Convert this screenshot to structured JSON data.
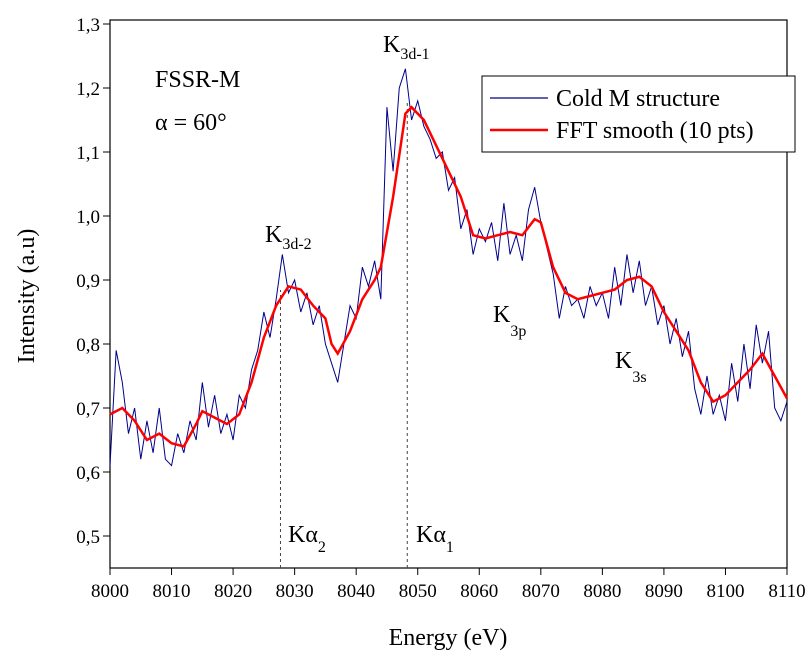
{
  "chart_data": {
    "type": "line",
    "x_label": "Energy (eV)",
    "y_label": "Intensity (a.u)",
    "xlim": [
      8000,
      8110
    ],
    "xticks": [
      8000,
      8010,
      8020,
      8030,
      8040,
      8050,
      8060,
      8070,
      8080,
      8090,
      8100,
      8110
    ],
    "ylim": [
      0.45,
      1.3
    ],
    "yticks": [
      {
        "value": 0.5,
        "label": "0,5"
      },
      {
        "value": 0.6,
        "label": "0,6"
      },
      {
        "value": 0.7,
        "label": "0,7"
      },
      {
        "value": 0.8,
        "label": "0,8"
      },
      {
        "value": 0.9,
        "label": "0,9"
      },
      {
        "value": 1.0,
        "label": "1,0"
      },
      {
        "value": 1.1,
        "label": "1,1"
      },
      {
        "value": 1.2,
        "label": "1,2"
      },
      {
        "value": 1.3,
        "label": "1,3"
      }
    ],
    "legend": "top-right",
    "annotations": [
      "FSSR-M",
      "α = 60°",
      {
        "main": "K",
        "sub": "3d-1"
      },
      {
        "main": "K",
        "sub": "3d-2"
      },
      {
        "main": "K",
        "sub": "3p"
      },
      {
        "main": "K",
        "sub": "3s"
      }
    ],
    "reference_lines": [
      {
        "x": 8027.7,
        "main": "Kα",
        "sub": "2"
      },
      {
        "x": 8048.3,
        "main": "Kα",
        "sub": "1"
      }
    ],
    "series": [
      {
        "name": "Cold M structure",
        "color": "#00008b",
        "x": [
          8000,
          8001,
          8002,
          8003,
          8004,
          8005,
          8006,
          8007,
          8008,
          8009,
          8010,
          8011,
          8012,
          8013,
          8014,
          8015,
          8016,
          8017,
          8018,
          8019,
          8020,
          8021,
          8022,
          8023,
          8024,
          8025,
          8026,
          8027,
          8028,
          8029,
          8030,
          8031,
          8032,
          8033,
          8034,
          8035,
          8036,
          8037,
          8038,
          8039,
          8040,
          8041,
          8042,
          8043,
          8044,
          8045,
          8046,
          8047,
          8048,
          8049,
          8050,
          8051,
          8052,
          8053,
          8054,
          8055,
          8056,
          8057,
          8058,
          8059,
          8060,
          8061,
          8062,
          8063,
          8064,
          8065,
          8066,
          8067,
          8068,
          8069,
          8070,
          8071,
          8072,
          8073,
          8074,
          8075,
          8076,
          8077,
          8078,
          8079,
          8080,
          8081,
          8082,
          8083,
          8084,
          8085,
          8086,
          8087,
          8088,
          8089,
          8090,
          8091,
          8092,
          8093,
          8094,
          8095,
          8096,
          8097,
          8098,
          8099,
          8100,
          8101,
          8102,
          8103,
          8104,
          8105,
          8106,
          8107,
          8108,
          8109,
          8110
        ],
        "values": [
          0.61,
          0.79,
          0.74,
          0.66,
          0.7,
          0.62,
          0.68,
          0.63,
          0.7,
          0.62,
          0.61,
          0.66,
          0.63,
          0.68,
          0.65,
          0.74,
          0.67,
          0.72,
          0.66,
          0.69,
          0.65,
          0.72,
          0.7,
          0.76,
          0.79,
          0.85,
          0.81,
          0.87,
          0.94,
          0.88,
          0.9,
          0.85,
          0.88,
          0.83,
          0.86,
          0.8,
          0.77,
          0.74,
          0.8,
          0.86,
          0.84,
          0.92,
          0.89,
          0.93,
          0.87,
          1.17,
          1.07,
          1.2,
          1.23,
          1.15,
          1.18,
          1.14,
          1.12,
          1.09,
          1.1,
          1.04,
          1.06,
          0.98,
          1.01,
          0.94,
          0.98,
          0.96,
          0.99,
          0.93,
          1.02,
          0.94,
          0.97,
          0.93,
          1.01,
          1.045,
          0.99,
          0.95,
          0.91,
          0.84,
          0.89,
          0.86,
          0.87,
          0.84,
          0.89,
          0.86,
          0.88,
          0.84,
          0.92,
          0.86,
          0.94,
          0.88,
          0.93,
          0.86,
          0.89,
          0.83,
          0.86,
          0.8,
          0.84,
          0.78,
          0.82,
          0.73,
          0.69,
          0.75,
          0.69,
          0.72,
          0.68,
          0.77,
          0.71,
          0.8,
          0.73,
          0.83,
          0.77,
          0.82,
          0.7,
          0.68,
          0.71
        ]
      },
      {
        "name": "FFT smooth (10 pts)",
        "color": "#ff0000",
        "x": [
          8000,
          8002,
          8004,
          8006,
          8008,
          8010,
          8012,
          8014,
          8015,
          8017,
          8019,
          8021,
          8023,
          8025,
          8027,
          8029,
          8031,
          8033,
          8035,
          8036,
          8037,
          8039,
          8041,
          8043,
          8044,
          8046,
          8048,
          8049,
          8051,
          8053,
          8055,
          8057,
          8059,
          8061,
          8063,
          8065,
          8067,
          8069,
          8070,
          8072,
          8074,
          8076,
          8078,
          8080,
          8082,
          8084,
          8086,
          8088,
          8090,
          8092,
          8094,
          8096,
          8098,
          8100,
          8102,
          8104,
          8106,
          8108,
          8110
        ],
        "values": [
          0.69,
          0.7,
          0.68,
          0.65,
          0.66,
          0.645,
          0.64,
          0.675,
          0.695,
          0.685,
          0.675,
          0.69,
          0.74,
          0.81,
          0.86,
          0.89,
          0.885,
          0.86,
          0.84,
          0.8,
          0.785,
          0.82,
          0.87,
          0.9,
          0.92,
          1.03,
          1.16,
          1.17,
          1.15,
          1.11,
          1.07,
          1.03,
          0.97,
          0.965,
          0.97,
          0.975,
          0.97,
          0.995,
          0.99,
          0.92,
          0.88,
          0.87,
          0.875,
          0.88,
          0.885,
          0.9,
          0.905,
          0.89,
          0.85,
          0.82,
          0.79,
          0.74,
          0.71,
          0.72,
          0.74,
          0.76,
          0.785,
          0.75,
          0.715
        ]
      }
    ]
  }
}
